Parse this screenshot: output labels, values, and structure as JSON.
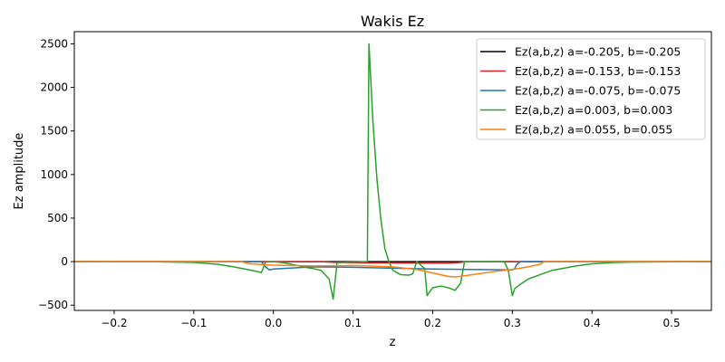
{
  "chart_data": {
    "type": "line",
    "title": "Wakis Ez",
    "xlabel": "z",
    "ylabel": "Ez amplitude",
    "xlim": [
      -0.25,
      0.55
    ],
    "ylim": [
      -560,
      2640
    ],
    "xticks": [
      -0.2,
      -0.1,
      0.0,
      0.1,
      0.2,
      0.3,
      0.4,
      0.5
    ],
    "xtick_labels": [
      "−0.2",
      "−0.1",
      "0.0",
      "0.1",
      "0.2",
      "0.3",
      "0.4",
      "0.5"
    ],
    "yticks": [
      -500,
      0,
      500,
      1000,
      1500,
      2000,
      2500
    ],
    "ytick_labels": [
      "−500",
      "0",
      "500",
      "1000",
      "1500",
      "2000",
      "2500"
    ],
    "grid": false,
    "legend_position": "top-right",
    "series": [
      {
        "name": "Ez(a,b,z) a=-0.205, b=-0.205",
        "color": "#000000",
        "points": [
          [
            -0.25,
            0
          ],
          [
            0.55,
            0
          ]
        ]
      },
      {
        "name": "Ez(a,b,z) a=-0.153, b=-0.153",
        "color": "#d62728",
        "points": [
          [
            -0.25,
            0
          ],
          [
            0.06,
            0
          ],
          [
            0.07,
            -5
          ],
          [
            0.08,
            -10
          ],
          [
            0.1,
            -12
          ],
          [
            0.12,
            -14
          ],
          [
            0.14,
            -15
          ],
          [
            0.16,
            -16
          ],
          [
            0.18,
            -17
          ],
          [
            0.2,
            -18
          ],
          [
            0.22,
            -18
          ],
          [
            0.235,
            -10
          ],
          [
            0.24,
            0
          ],
          [
            0.55,
            0
          ]
        ]
      },
      {
        "name": "Ez(a,b,z) a=-0.075, b=-0.075",
        "color": "#1f77b4",
        "points": [
          [
            -0.25,
            0
          ],
          [
            -0.015,
            0
          ],
          [
            -0.01,
            -60
          ],
          [
            -0.005,
            -95
          ],
          [
            0.0,
            -85
          ],
          [
            0.05,
            -60
          ],
          [
            0.1,
            -65
          ],
          [
            0.15,
            -75
          ],
          [
            0.2,
            -85
          ],
          [
            0.25,
            -90
          ],
          [
            0.3,
            -95
          ],
          [
            0.303,
            -80
          ],
          [
            0.305,
            -40
          ],
          [
            0.31,
            0
          ],
          [
            0.55,
            0
          ]
        ]
      },
      {
        "name": "Ez(a,b,z) a=0.003, b=0.003",
        "color": "#2ca02c",
        "points": [
          [
            -0.25,
            0
          ],
          [
            -0.2,
            -1
          ],
          [
            -0.15,
            -2
          ],
          [
            -0.1,
            -10
          ],
          [
            -0.07,
            -30
          ],
          [
            -0.05,
            -60
          ],
          [
            -0.03,
            -95
          ],
          [
            -0.015,
            -125
          ],
          [
            -0.01,
            -5
          ],
          [
            0.0,
            0
          ],
          [
            0.01,
            -10
          ],
          [
            0.02,
            -25
          ],
          [
            0.03,
            -45
          ],
          [
            0.04,
            -65
          ],
          [
            0.05,
            -80
          ],
          [
            0.06,
            -100
          ],
          [
            0.07,
            -200
          ],
          [
            0.075,
            -430
          ],
          [
            0.08,
            -10
          ],
          [
            0.118,
            0
          ],
          [
            0.12,
            2500
          ],
          [
            0.125,
            1600
          ],
          [
            0.13,
            950
          ],
          [
            0.135,
            480
          ],
          [
            0.14,
            150
          ],
          [
            0.145,
            0
          ],
          [
            0.15,
            -100
          ],
          [
            0.16,
            -150
          ],
          [
            0.17,
            -155
          ],
          [
            0.175,
            -140
          ],
          [
            0.18,
            0
          ],
          [
            0.19,
            -80
          ],
          [
            0.193,
            -390
          ],
          [
            0.2,
            -300
          ],
          [
            0.21,
            -280
          ],
          [
            0.22,
            -300
          ],
          [
            0.228,
            -330
          ],
          [
            0.235,
            -250
          ],
          [
            0.24,
            0
          ],
          [
            0.29,
            0
          ],
          [
            0.295,
            -100
          ],
          [
            0.3,
            -390
          ],
          [
            0.303,
            -310
          ],
          [
            0.31,
            -260
          ],
          [
            0.32,
            -200
          ],
          [
            0.35,
            -100
          ],
          [
            0.38,
            -50
          ],
          [
            0.4,
            -25
          ],
          [
            0.43,
            -10
          ],
          [
            0.45,
            -5
          ],
          [
            0.5,
            -1
          ],
          [
            0.55,
            0
          ]
        ]
      },
      {
        "name": "Ez(a,b,z) a=0.055, b=0.055",
        "color": "#ff7f0e",
        "points": [
          [
            -0.25,
            0
          ],
          [
            -0.04,
            0
          ],
          [
            -0.03,
            -25
          ],
          [
            -0.02,
            -30
          ],
          [
            0.0,
            -40
          ],
          [
            0.05,
            -50
          ],
          [
            0.1,
            -45
          ],
          [
            0.15,
            -60
          ],
          [
            0.18,
            -90
          ],
          [
            0.2,
            -130
          ],
          [
            0.22,
            -170
          ],
          [
            0.23,
            -175
          ],
          [
            0.25,
            -150
          ],
          [
            0.28,
            -110
          ],
          [
            0.3,
            -90
          ],
          [
            0.32,
            -60
          ],
          [
            0.335,
            -30
          ],
          [
            0.34,
            0
          ],
          [
            0.55,
            0
          ]
        ]
      }
    ]
  }
}
